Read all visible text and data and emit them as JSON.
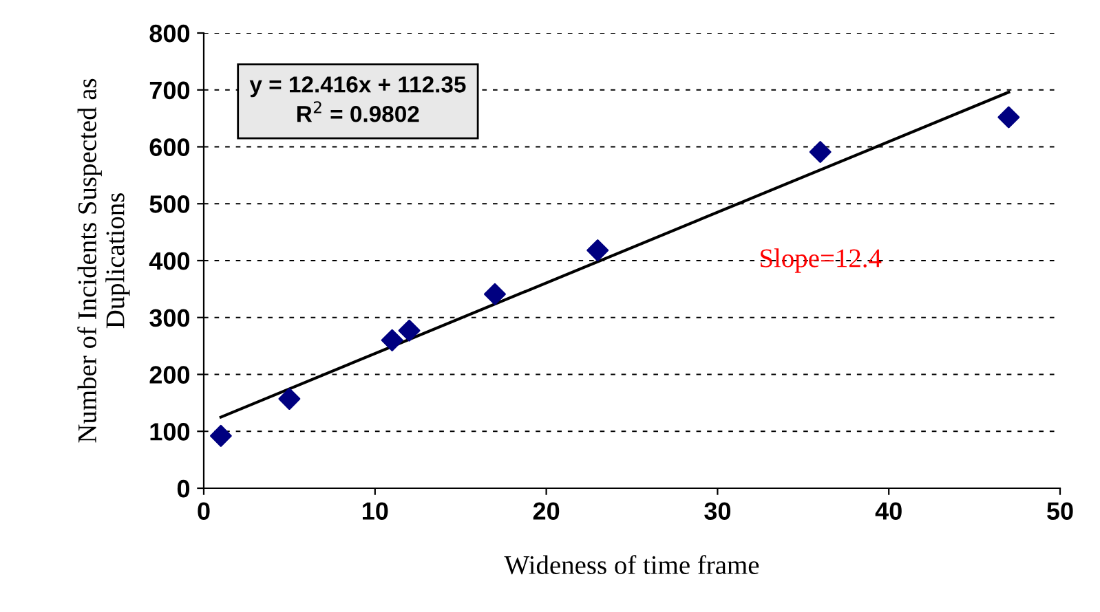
{
  "chart_data": {
    "type": "scatter",
    "xlabel": "Wideness of time frame",
    "ylabel": "Number of Incidents Suspected as\nDuplications",
    "x": [
      1,
      5,
      11,
      12,
      17,
      23,
      36,
      47
    ],
    "series": [
      {
        "color": "#000080",
        "values": [
          92,
          157,
          260,
          277,
          341,
          418,
          591,
          652
        ],
        "marker": "diamond"
      },
      {
        "type": "line",
        "color": "#000000",
        "x": [
          1,
          47
        ],
        "values": [
          125,
          696
        ],
        "marker": "none",
        "line_style": "solid"
      }
    ],
    "xlim": [
      0,
      50
    ],
    "xticks": [
      0,
      10,
      20,
      30,
      40,
      50
    ],
    "ylim": [
      0,
      800
    ],
    "yticks": [
      0,
      100,
      200,
      300,
      400,
      500,
      600,
      700,
      800
    ],
    "grid": "y",
    "legend": false,
    "annotations": [
      "y = 12.416x + 112.35\nR$^{2}$ = 0.9802",
      "Slope=12.4"
    ]
  }
}
